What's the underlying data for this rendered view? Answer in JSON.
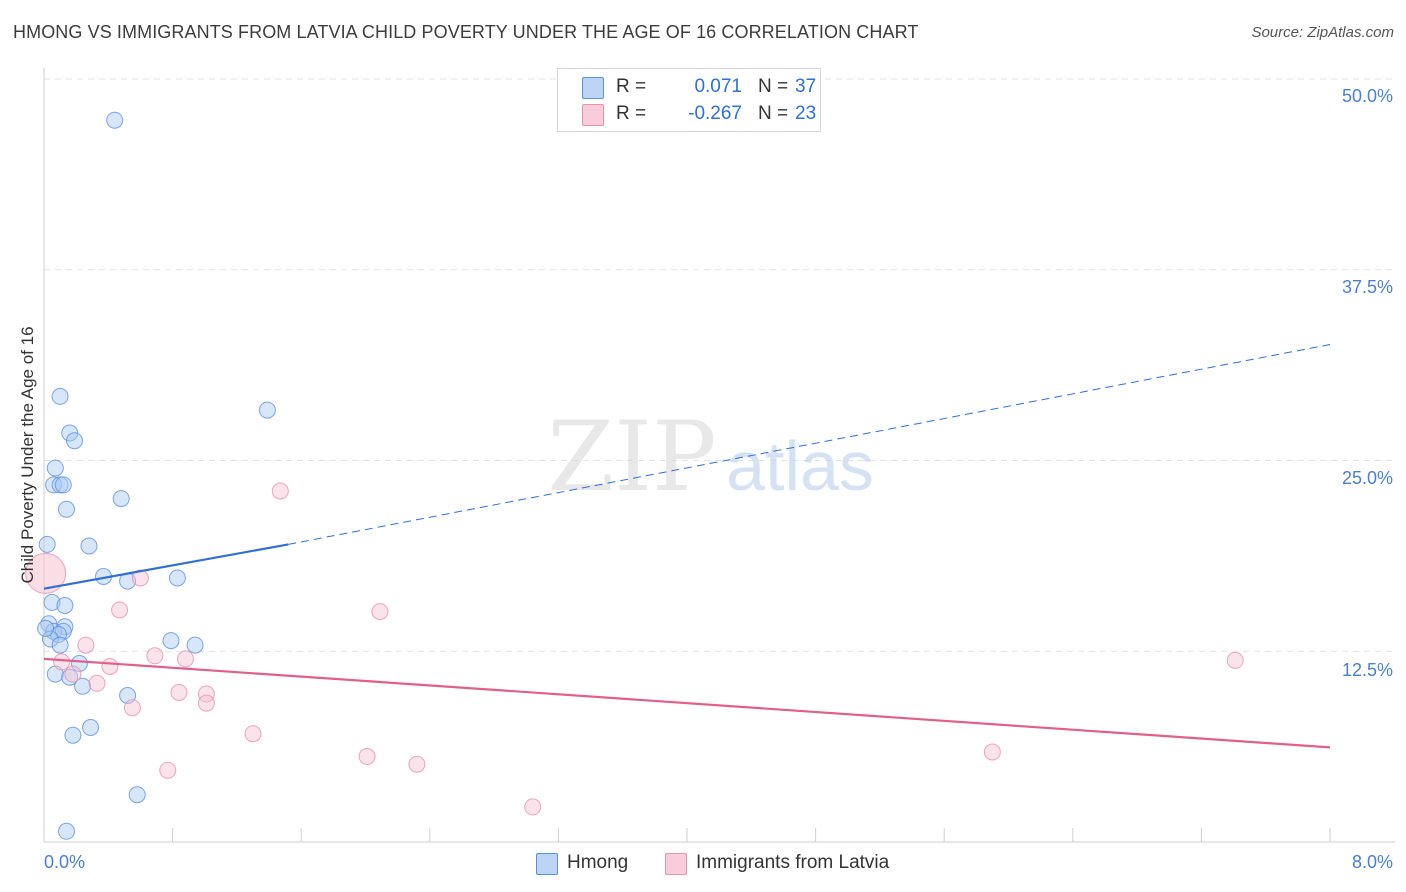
{
  "header": {
    "title": "HMONG VS IMMIGRANTS FROM LATVIA CHILD POVERTY UNDER THE AGE OF 16 CORRELATION CHART",
    "source": "Source: ZipAtlas.com"
  },
  "watermark": {
    "zip": "ZIP",
    "atlas": "atlas"
  },
  "colors": {
    "hmong_fill": "#a9c8f2",
    "hmong_stroke": "#5b90e0",
    "hmong_line": "#2f6fd6",
    "latvia_fill": "#f7c1d2",
    "latvia_stroke": "#e890ad",
    "latvia_line": "#e0608d",
    "grid": "#e2e2e2",
    "axis_text": "#4a7fd0"
  },
  "legend": {
    "rows": [
      {
        "r_label": "R =",
        "r_value": "0.071",
        "n_label": "N =",
        "n_value": "37"
      },
      {
        "r_label": "R =",
        "r_value": "-0.267",
        "n_label": "N =",
        "n_value": "23"
      }
    ]
  },
  "chart_data": {
    "type": "scatter",
    "title": "HMONG VS IMMIGRANTS FROM LATVIA CHILD POVERTY UNDER THE AGE OF 16 CORRELATION CHART",
    "xlabel": "",
    "ylabel": "Child Poverty Under the Age of 16",
    "xlim": [
      0,
      8
    ],
    "ylim": [
      0,
      50
    ],
    "x_tick_labels": [
      "0.0%",
      "8.0%"
    ],
    "y_ticks": [
      12.5,
      25.0,
      37.5,
      50.0
    ],
    "y_tick_labels": [
      "12.5%",
      "25.0%",
      "37.5%",
      "50.0%"
    ],
    "grid": true,
    "legend_position": "top-center",
    "series": [
      {
        "name": "Hmong",
        "r": 0.071,
        "n": 37,
        "points": [
          [
            0.44,
            47.3
          ],
          [
            0.1,
            29.2
          ],
          [
            0.16,
            26.8
          ],
          [
            0.19,
            26.3
          ],
          [
            1.39,
            28.3
          ],
          [
            0.07,
            24.5
          ],
          [
            0.06,
            23.4
          ],
          [
            0.1,
            23.4
          ],
          [
            0.12,
            23.4
          ],
          [
            0.48,
            22.5
          ],
          [
            0.14,
            21.8
          ],
          [
            0.28,
            19.4
          ],
          [
            0.02,
            19.5
          ],
          [
            0.37,
            17.4
          ],
          [
            0.52,
            17.1
          ],
          [
            0.83,
            17.3
          ],
          [
            0.05,
            15.7
          ],
          [
            0.13,
            15.5
          ],
          [
            0.03,
            14.3
          ],
          [
            0.13,
            14.1
          ],
          [
            0.06,
            13.8
          ],
          [
            0.12,
            13.8
          ],
          [
            0.09,
            13.6
          ],
          [
            0.04,
            13.3
          ],
          [
            0.1,
            12.9
          ],
          [
            0.79,
            13.2
          ],
          [
            0.94,
            12.9
          ],
          [
            0.22,
            11.7
          ],
          [
            0.07,
            11.0
          ],
          [
            0.16,
            10.8
          ],
          [
            0.24,
            10.2
          ],
          [
            0.52,
            9.6
          ],
          [
            0.29,
            7.5
          ],
          [
            0.18,
            7.0
          ],
          [
            0.58,
            3.1
          ],
          [
            0.14,
            0.7
          ],
          [
            0.01,
            14.0
          ]
        ]
      },
      {
        "name": "Immigrants from Latvia",
        "r": -0.267,
        "n": 23,
        "points": [
          [
            0.01,
            17.6
          ],
          [
            1.47,
            23.0
          ],
          [
            0.6,
            17.3
          ],
          [
            0.47,
            15.2
          ],
          [
            2.09,
            15.1
          ],
          [
            0.26,
            12.9
          ],
          [
            0.69,
            12.2
          ],
          [
            0.88,
            12.0
          ],
          [
            0.11,
            11.8
          ],
          [
            0.41,
            11.5
          ],
          [
            0.18,
            11.0
          ],
          [
            0.33,
            10.4
          ],
          [
            0.84,
            9.8
          ],
          [
            1.01,
            9.7
          ],
          [
            1.01,
            9.1
          ],
          [
            0.55,
            8.8
          ],
          [
            1.3,
            7.1
          ],
          [
            7.41,
            11.9
          ],
          [
            2.01,
            5.6
          ],
          [
            2.32,
            5.1
          ],
          [
            0.77,
            4.7
          ],
          [
            5.9,
            5.9
          ],
          [
            3.04,
            2.3
          ]
        ]
      }
    ],
    "trend_lines": [
      {
        "series": "Hmong",
        "x": [
          0.0,
          1.52
        ],
        "y": [
          16.6,
          19.5
        ],
        "style": "solid"
      },
      {
        "series": "Hmong",
        "x": [
          1.52,
          8.0
        ],
        "y": [
          19.5,
          32.6
        ],
        "style": "dashed"
      },
      {
        "series": "Immigrants from Latvia",
        "x": [
          0.0,
          8.0
        ],
        "y": [
          12.0,
          6.2
        ],
        "style": "solid"
      }
    ]
  },
  "bottom_legend": [
    {
      "label": "Hmong"
    },
    {
      "label": "Immigrants from Latvia"
    }
  ]
}
